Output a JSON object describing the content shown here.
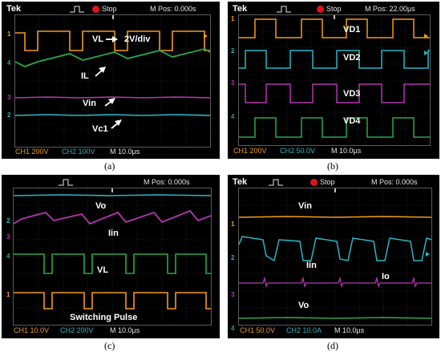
{
  "colors": {
    "ch_orange": "#f29b1d",
    "ch_cyan": "#2bb5c2",
    "ch_magenta": "#b236b0",
    "ch_green": "#2aa84a",
    "stop_red": "#e01515"
  },
  "common": {
    "brand": "Tek",
    "stop": "Stop"
  },
  "panels": [
    {
      "caption": "(a)",
      "mpos": "M Pos: 0.000s",
      "footer": [
        {
          "text": "CH1  200V",
          "color": "#f29b1d"
        },
        {
          "text": "CH2  100V",
          "color": "#2bb5c2"
        },
        {
          "text": "M 10.0µs",
          "color": "#e8e8e8"
        }
      ],
      "labels": {
        "vl": "VL",
        "div": "2V/div",
        "il": "IL",
        "vin": "Vin",
        "vc1": "Vc1"
      },
      "markers": {
        "m1": "1",
        "m4": "4",
        "m3": "3",
        "m2": "2"
      }
    },
    {
      "caption": "(b)",
      "mpos": "M Pos: 22.00µs",
      "footer": [
        {
          "text": "CH1  200V",
          "color": "#f29b1d"
        },
        {
          "text": "CH2  50.0V",
          "color": "#2bb5c2"
        },
        {
          "text": "M 10.0µs",
          "color": "#e8e8e8"
        }
      ],
      "labels": {
        "vd1": "VD1",
        "vd2": "VD2",
        "vd3": "VD3",
        "vd4": "VD4"
      },
      "markers": {
        "m1": "1",
        "m2": "2",
        "m3": "3",
        "m4": "4"
      }
    },
    {
      "caption": "(c)",
      "mpos": "M Pos: 0.000s",
      "footer": [
        {
          "text": "CH1  10.0V",
          "color": "#f29b1d"
        },
        {
          "text": "CH2  200V",
          "color": "#2bb5c2"
        },
        {
          "text": "M 10.0µs",
          "color": "#e8e8e8"
        }
      ],
      "labels": {
        "vo": "Vo",
        "iin": "Iin",
        "vl": "VL",
        "sw": "Switching Pulse"
      },
      "markers": {
        "m2": "2",
        "m3": "3",
        "m4": "4",
        "m1": "1"
      }
    },
    {
      "caption": "(d)",
      "mpos": "M Pos: 0.000s",
      "footer": [
        {
          "text": "CH1  50.0V",
          "color": "#f29b1d"
        },
        {
          "text": "CH2  10.0A",
          "color": "#2bb5c2"
        },
        {
          "text": "M 10.0µs",
          "color": "#e8e8e8"
        }
      ],
      "labels": {
        "vin": "Vin",
        "iin": "Iin",
        "io": "Io",
        "vo": "Vo"
      },
      "markers": {
        "m1": "1",
        "m2": "2",
        "m3": "3",
        "m4": "4"
      }
    }
  ]
}
